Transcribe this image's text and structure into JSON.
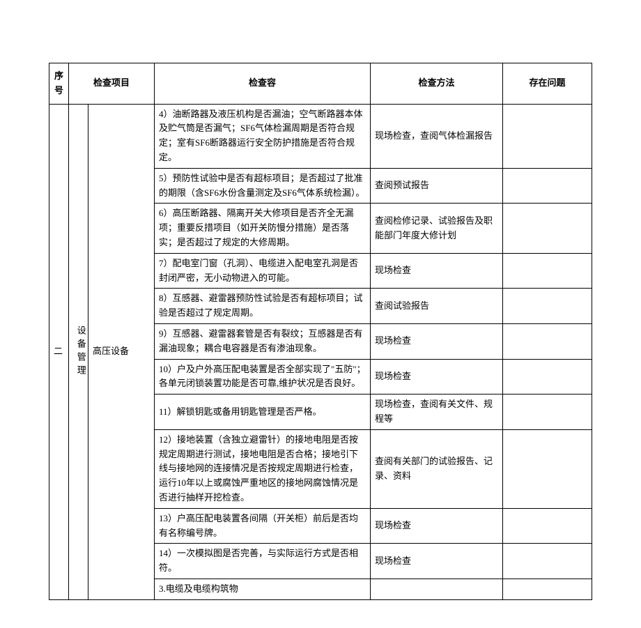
{
  "headers": {
    "seq": "序号",
    "project": "检查项目",
    "content": "检查容",
    "method": "检查方法",
    "issue": "存在问题"
  },
  "seq_number": "二",
  "category": "设备管理",
  "item_name": "高压设备",
  "rows": [
    {
      "content": "4）油断路器及液压机构是否漏油；空气断路器本体及贮气筒是否漏气；SF6气体检漏周期是否符合规定；室有SF6断路器运行安全防护措施是否符合规定。",
      "method": "现场检查，查阅气体检漏报告"
    },
    {
      "content": "5）预防性试验中是否有超标项目；是否超过了批准的期限（含SF6水份含量测定及SF6气体系统检漏）。",
      "method": "查阅预试报告"
    },
    {
      "content": "6）高压断路器、隔离开关大修项目是否齐全无漏项；重要反措项目（如开关防慢分措施）是否落实；是否超过了规定的大修周期。",
      "method": "查阅检修记录、试验报告及职能部门年度大修计划"
    },
    {
      "content": "7）配电室门窗（孔洞）、电缆进入配电室孔洞是否封闭严密，无小动物进入的可能。",
      "method": "现场检查"
    },
    {
      "content": "8）互感器、避雷器预防性试验是否有超标项目；试验是否超过了规定周期。",
      "method": "查阅试验报告"
    },
    {
      "content": "9）互感器、避雷器套管是否有裂纹；互感器是否有漏油现象；耦合电容器是否有渗油现象。",
      "method": "现场检查"
    },
    {
      "content": "10）户及户外高压配电装置是否全部实现了\"五防\"；各单元闭锁装置功能是否可靠,维护状况是否良好。",
      "method": "现场检查"
    },
    {
      "content": "11）解锁钥匙或备用钥匙管理是否严格。",
      "method": "现场检查，查阅有关文件、规程等"
    },
    {
      "content": "12）接地装置（含独立避雷针）的接地电阻是否按规定周期进行测试，接地电阻是否合格；接地引下线与接地网的连接情况是否按规定周期进行检查，运行10年以上或腐蚀严重地区的接地网腐蚀情况是否进行抽样开挖检查。",
      "method": "查阅有关部门的试验报告、记录、资料"
    },
    {
      "content": "13）户高压配电装置各间隔（开关柜）前后是否均有名称编号牌。",
      "method": "现场检查"
    },
    {
      "content": "14）一次模拟图是否完善，与实际运行方式是否相符。",
      "method": "现场检查"
    },
    {
      "content": "3.电缆及电缆构筑物",
      "method": ""
    }
  ]
}
